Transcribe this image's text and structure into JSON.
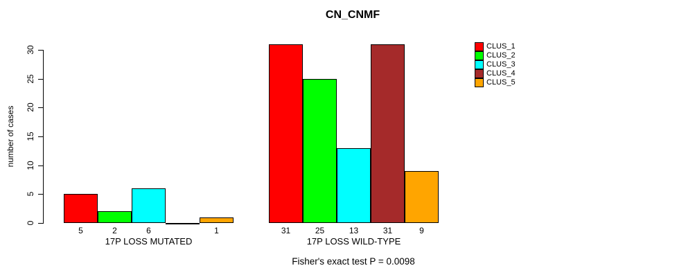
{
  "chart_data": {
    "type": "bar",
    "title": "CN_CNMF",
    "xlabel": "",
    "ylabel": "number of cases",
    "ylim": [
      0,
      31
    ],
    "yticks": [
      0,
      5,
      10,
      15,
      20,
      25,
      30
    ],
    "grid": false,
    "legend_position": "right",
    "bar_value_labels": "shown below each bar; zero-height bar has no label",
    "categories": [
      "17P LOSS MUTATED",
      "17P LOSS WILD-TYPE"
    ],
    "series": [
      {
        "name": "CLUS_1",
        "color": "#FF0000",
        "values": [
          5,
          31
        ]
      },
      {
        "name": "CLUS_2",
        "color": "#00FF00",
        "values": [
          2,
          25
        ]
      },
      {
        "name": "CLUS_3",
        "color": "#00FFFF",
        "values": [
          6,
          13
        ]
      },
      {
        "name": "CLUS_4",
        "color": "#A52A2A",
        "values": [
          0,
          31
        ]
      },
      {
        "name": "CLUS_5",
        "color": "#FFA500",
        "values": [
          1,
          9
        ]
      }
    ]
  },
  "footnote": {
    "text": "Fisher's exact test P = 0.0098"
  }
}
